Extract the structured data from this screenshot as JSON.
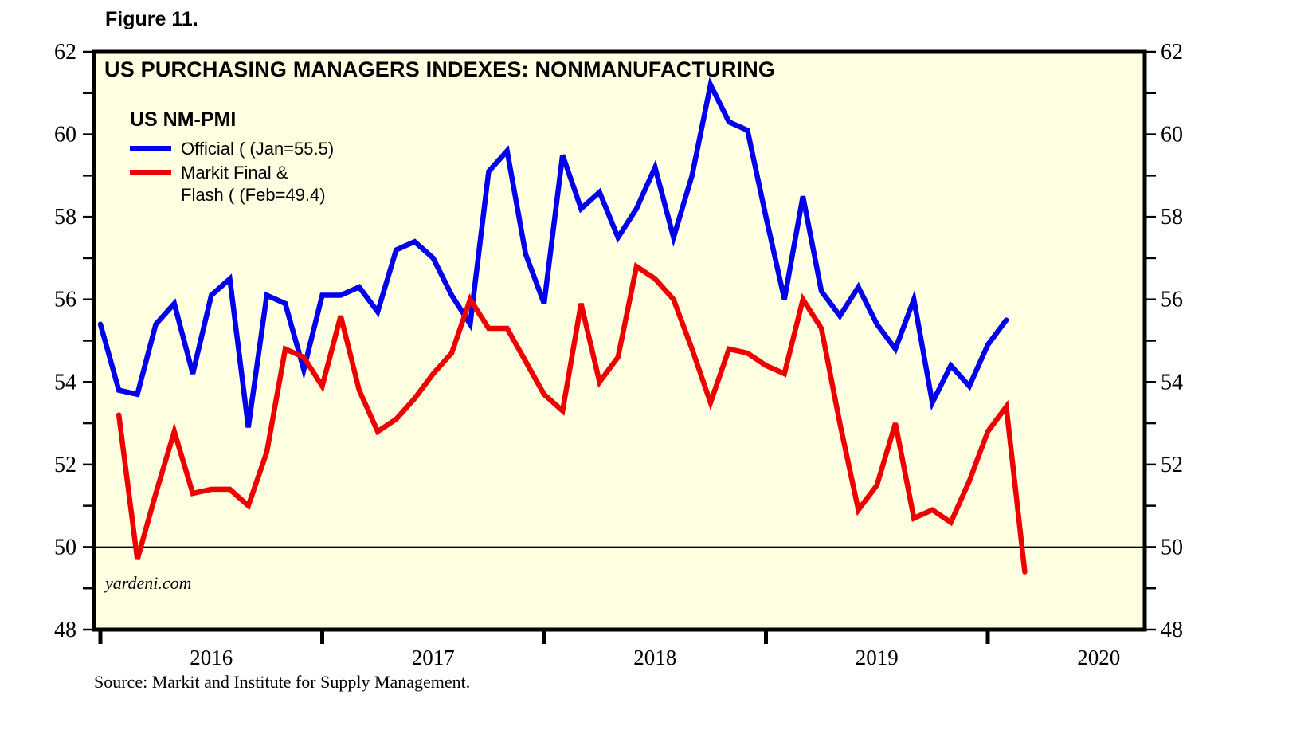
{
  "figure_label": "Figure 11.",
  "chart": {
    "title": "US PURCHASING MANAGERS INDEXES: NONMANUFACTURING",
    "watermark": "yardeni.com",
    "source_note": "Source: Markit and Institute for Supply Management.",
    "legend": {
      "heading": "US NM-PMI",
      "items": [
        {
          "name": "official",
          "label": "Official ( (Jan=55.5)",
          "color": "#0000ee"
        },
        {
          "name": "markit",
          "lines": [
            "Markit Final &",
            "Flash ( (Feb=49.4)"
          ],
          "color": "#ee0000"
        }
      ]
    }
  },
  "chart_data": {
    "type": "line",
    "title": "US PURCHASING MANAGERS INDEXES: NONMANUFACTURING",
    "frequency": "monthly",
    "ylim": [
      48,
      62
    ],
    "grid": "off",
    "legend_position": "top-left-inside",
    "colors": {
      "plot_background": "#ffffe2",
      "frame": "#000000"
    },
    "y_axis": {
      "min": 48,
      "max": 62,
      "tick_labels": [
        48,
        50,
        52,
        54,
        56,
        58,
        60,
        62
      ],
      "minor_tick_step": 1,
      "sides": [
        "left",
        "right"
      ]
    },
    "x_axis": {
      "year_labels": [
        "2016",
        "2017",
        "2018",
        "2019",
        "2020"
      ]
    },
    "reference_lines": [
      50
    ],
    "series": [
      {
        "name": "Official",
        "color": "#0000ee",
        "start": "2015-12",
        "last_point_label": "Jan=55.5",
        "values": [
          55.4,
          53.8,
          53.7,
          55.4,
          55.9,
          54.2,
          56.1,
          56.5,
          52.9,
          56.1,
          55.9,
          54.3,
          56.1,
          56.1,
          56.3,
          55.7,
          57.2,
          57.4,
          57.0,
          56.1,
          55.4,
          59.1,
          59.6,
          57.1,
          55.9,
          59.5,
          58.2,
          58.6,
          57.5,
          58.2,
          59.2,
          57.5,
          59.0,
          61.2,
          60.3,
          60.1,
          58.0,
          56.0,
          58.5,
          56.2,
          55.6,
          56.3,
          55.4,
          54.8,
          56.0,
          53.5,
          54.4,
          53.9,
          54.9,
          55.5
        ]
      },
      {
        "name": "Markit Final & Flash",
        "color": "#ee0000",
        "start": "2016-01",
        "last_point_label": "Feb=49.4",
        "values": [
          53.2,
          49.7,
          51.3,
          52.8,
          51.3,
          51.4,
          51.4,
          51.0,
          52.3,
          54.8,
          54.6,
          53.9,
          55.6,
          53.8,
          52.8,
          53.1,
          53.6,
          54.2,
          54.7,
          56.0,
          55.3,
          55.3,
          54.5,
          53.7,
          53.3,
          55.9,
          54.0,
          54.6,
          56.8,
          56.5,
          56.0,
          54.8,
          53.5,
          54.8,
          54.7,
          54.4,
          54.2,
          56.0,
          55.3,
          53.0,
          50.9,
          51.5,
          53.0,
          50.7,
          50.9,
          50.6,
          51.6,
          52.8,
          53.4,
          49.4
        ]
      }
    ]
  }
}
